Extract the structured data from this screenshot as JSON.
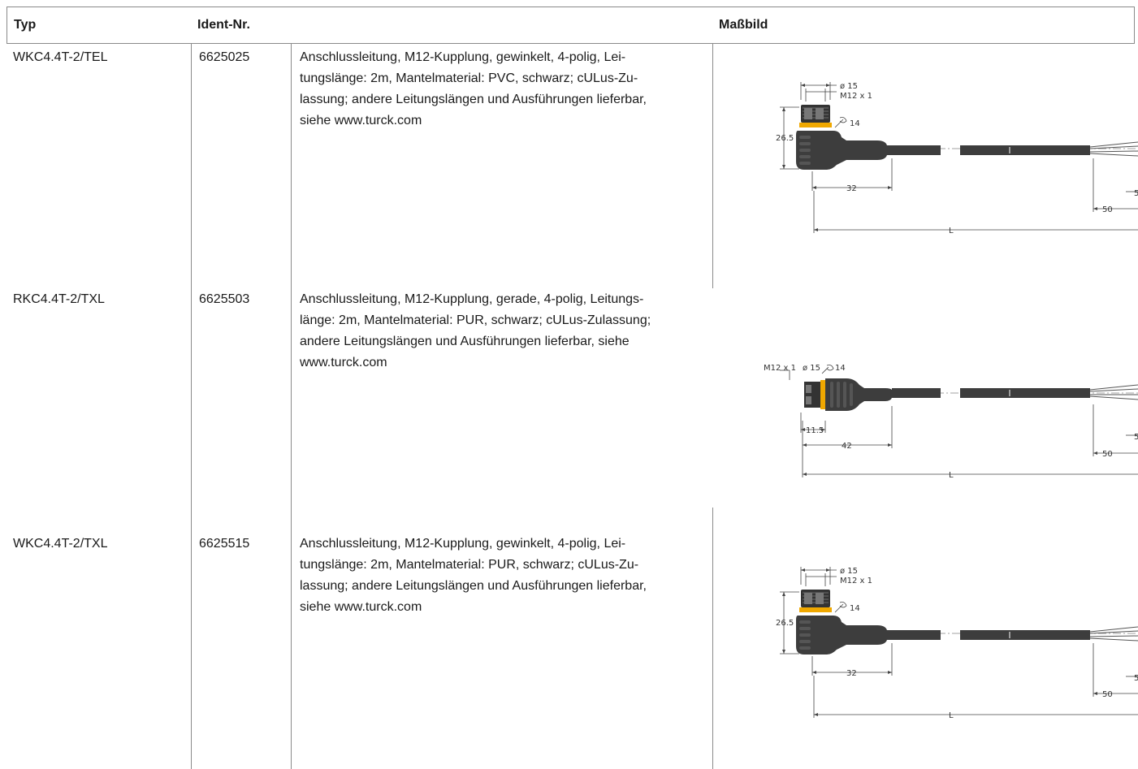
{
  "table": {
    "headers": {
      "typ": "Typ",
      "ident": "Ident-Nr.",
      "desc": "",
      "massbild": "Maßbild"
    },
    "rows": [
      {
        "typ": "WKC4.4T-2/TEL",
        "ident": "6625025",
        "desc_lines": [
          "Anschlussleitung, M12-Kupplung, gewinkelt, 4-polig, Lei-",
          "tungslänge: 2m, Mantelmaterial: PVC, schwarz; cULus-Zu-",
          "lassung; andere Leitungslängen und Ausführungen lieferbar,",
          "siehe www.turck.com"
        ],
        "drawing": {
          "variant": "angled",
          "d_label": "ø 15",
          "thread": "M12 x 1",
          "wrench": "14",
          "height": "26.5",
          "length_a": "32",
          "strip": "50",
          "total": "L",
          "edge_char": "5"
        }
      },
      {
        "typ": "RKC4.4T-2/TXL",
        "ident": "6625503",
        "desc_lines": [
          "Anschlussleitung, M12-Kupplung, gerade, 4-polig, Leitungs-",
          "länge: 2m, Mantelmaterial: PUR, schwarz; cULus-Zulassung;",
          "andere Leitungslängen und Ausführungen lieferbar, siehe",
          "www.turck.com"
        ],
        "drawing": {
          "variant": "straight",
          "d_label": "ø 15",
          "thread": "M12 x 1",
          "wrench": "14",
          "length_b": "11.5",
          "length_a": "42",
          "strip": "50",
          "total": "L",
          "edge_char": "5"
        }
      },
      {
        "typ": "WKC4.4T-2/TXL",
        "ident": "6625515",
        "desc_lines": [
          "Anschlussleitung, M12-Kupplung, gewinkelt, 4-polig, Lei-",
          "tungslänge: 2m, Mantelmaterial: PUR, schwarz; cULus-Zu-",
          "lassung; andere Leitungslängen und Ausführungen lieferbar,",
          "siehe www.turck.com"
        ],
        "drawing": {
          "variant": "angled",
          "d_label": "ø 15",
          "thread": "M12 x 1",
          "wrench": "14",
          "height": "26.5",
          "length_a": "32",
          "strip": "50",
          "total": "L",
          "edge_char": "5"
        }
      }
    ]
  },
  "colors": {
    "connector": "#3d3d3d",
    "ring": "#f0a800",
    "rule": "#8a8a8a"
  }
}
